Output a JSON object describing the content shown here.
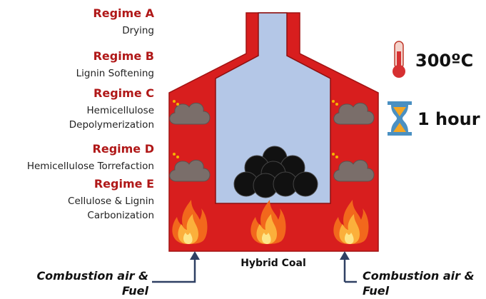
{
  "regimes": [
    {
      "name": "Regime A",
      "desc": [
        "Drying"
      ]
    },
    {
      "name": "Regime B",
      "desc": [
        "Lignin Softening"
      ]
    },
    {
      "name": "Regime C",
      "desc": [
        "Hemicellulose",
        "Depolymerization"
      ]
    },
    {
      "name": "Regime D",
      "desc": [
        "Hemicellulose Torrefaction"
      ]
    },
    {
      "name": "Regime E",
      "desc": [
        "Cellulose & Lignin",
        "Carbonization"
      ]
    }
  ],
  "temperature": "300ºC",
  "duration": "1 hour",
  "product": "Hybrid Coal",
  "inputs": [
    [
      "Combustion air &",
      "Fuel"
    ],
    [
      "Combustion air &",
      "Fuel"
    ]
  ]
}
